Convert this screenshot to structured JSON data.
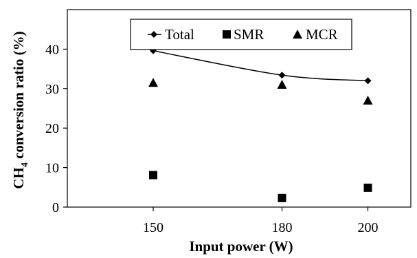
{
  "chart_data": {
    "type": "scatter",
    "xlabel": "Input power (W)",
    "ylabel": {
      "main": "CH",
      "sub": "4",
      "rest": " conversion ratio (%)"
    },
    "x_ticks": [
      150,
      180,
      200
    ],
    "y_ticks": [
      0,
      10,
      20,
      30,
      40
    ],
    "xlim": [
      130,
      210
    ],
    "ylim": [
      0,
      50
    ],
    "grid": false,
    "legend_position": "top",
    "series": [
      {
        "name": "Total",
        "marker": "diamond-line",
        "color": "#000000",
        "x": [
          150,
          180,
          200
        ],
        "y": [
          39.6,
          33.4,
          32.0
        ],
        "smooth_line": true
      },
      {
        "name": "SMR",
        "marker": "square",
        "color": "#000000",
        "x": [
          150,
          180,
          200
        ],
        "y": [
          8.1,
          2.3,
          4.9
        ]
      },
      {
        "name": "MCR",
        "marker": "triangle",
        "color": "#000000",
        "x": [
          150,
          180,
          200
        ],
        "y": [
          31.5,
          31.0,
          27.0
        ]
      }
    ]
  }
}
